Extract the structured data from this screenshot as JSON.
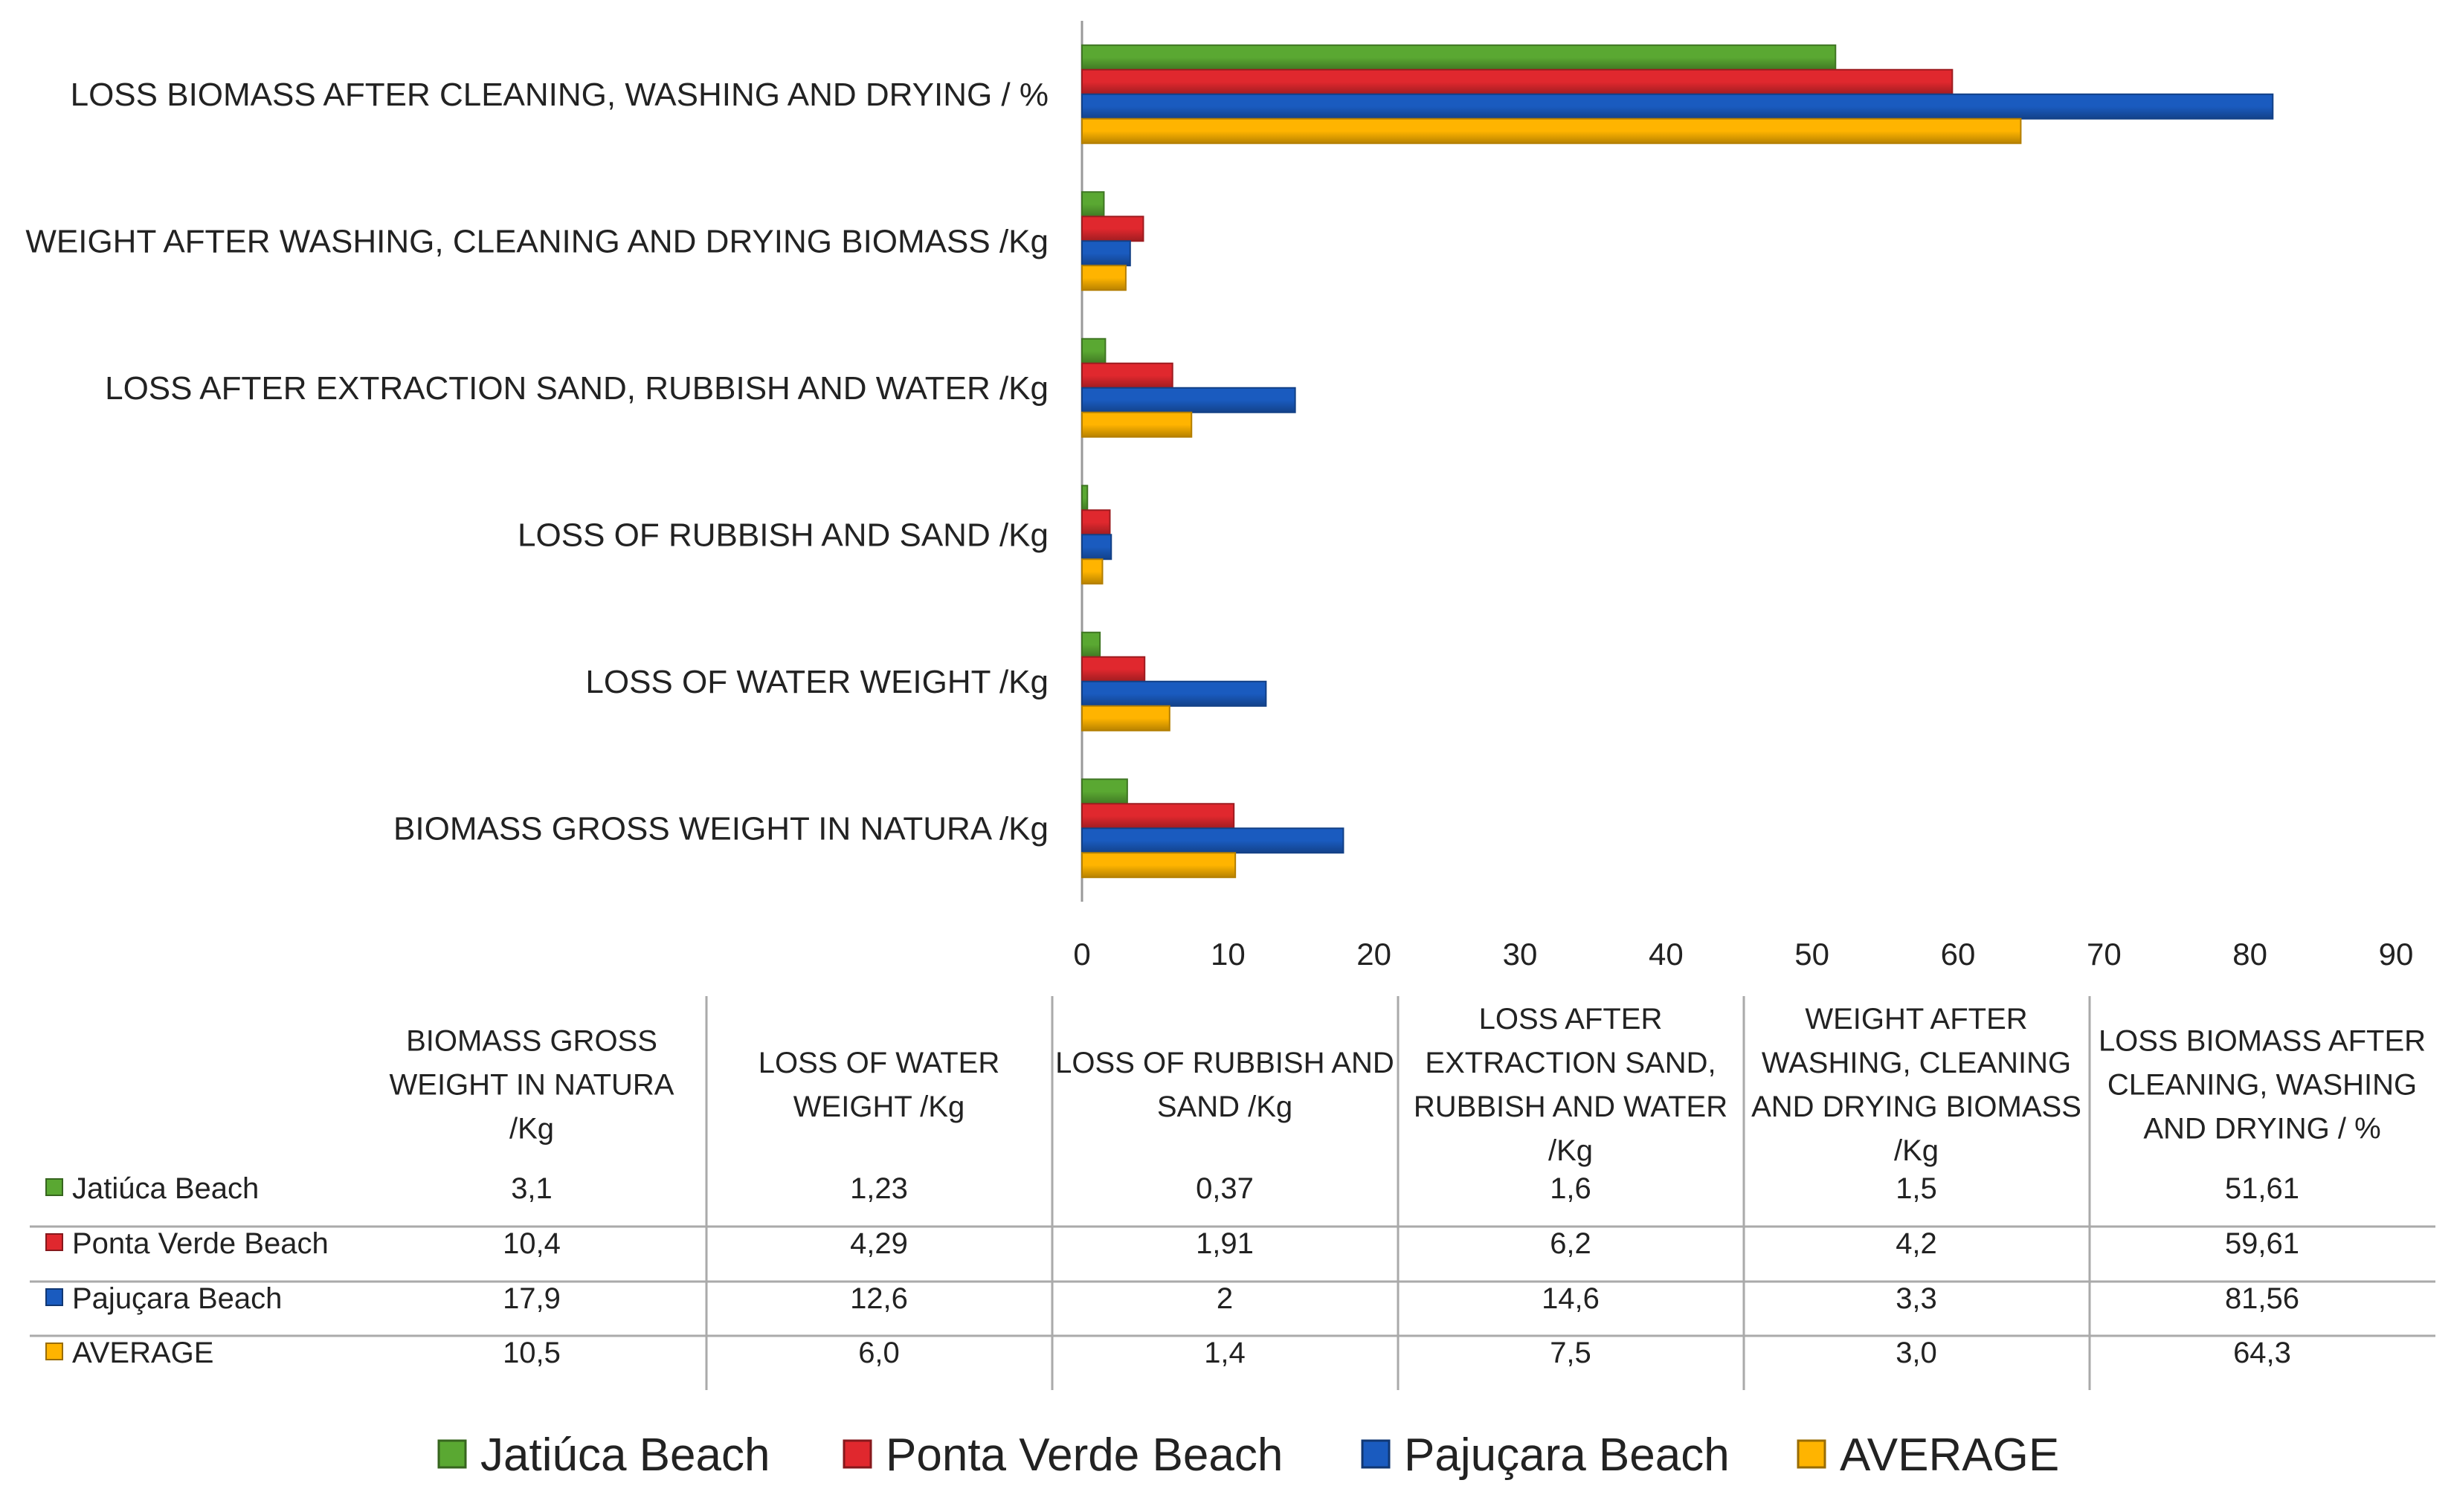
{
  "chart_data": {
    "type": "bar",
    "orientation": "horizontal",
    "categories": [
      "BIOMASS GROSS WEIGHT IN NATURA /Kg",
      "LOSS OF WATER WEIGHT /Kg",
      "LOSS OF RUBBISH AND SAND /Kg",
      "LOSS AFTER EXTRACTION SAND, RUBBISH AND WATER /Kg",
      "WEIGHT AFTER WASHING, CLEANING AND DRYING BIOMASS /Kg",
      "LOSS BIOMASS AFTER CLEANING, WASHING AND DRYING / %"
    ],
    "series": [
      {
        "name": "Jatiúca Beach",
        "color": "#5aa832",
        "values": [
          3.1,
          1.23,
          0.37,
          1.6,
          1.5,
          51.61
        ],
        "labels": [
          "3,1",
          "1,23",
          "0,37",
          "1,6",
          "1,5",
          "51,61"
        ]
      },
      {
        "name": "Ponta Verde Beach",
        "color": "#e0282e",
        "values": [
          10.4,
          4.29,
          1.91,
          6.2,
          4.2,
          59.61
        ],
        "labels": [
          "10,4",
          "4,29",
          "1,91",
          "6,2",
          "4,2",
          "59,61"
        ]
      },
      {
        "name": "Pajuçara Beach",
        "color": "#1a5bbf",
        "values": [
          17.9,
          12.6,
          2,
          14.6,
          3.3,
          81.56
        ],
        "labels": [
          "17,9",
          "12,6",
          "2",
          "14,6",
          "3,3",
          "81,56"
        ]
      },
      {
        "name": "AVERAGE",
        "color": "#ffb400",
        "values": [
          10.5,
          6.0,
          1.4,
          7.5,
          3.0,
          64.3
        ],
        "labels": [
          "10,5",
          "6,0",
          "1,4",
          "7,5",
          "3,0",
          "64,3"
        ]
      }
    ],
    "xlim": [
      0,
      90
    ],
    "x_ticks": [
      0,
      10,
      20,
      30,
      40,
      50,
      60,
      70,
      80,
      90
    ],
    "table_headers": [
      [
        "BIOMASS GROSS",
        "WEIGHT IN NATURA",
        "/Kg"
      ],
      [
        "LOSS OF WATER",
        "WEIGHT /Kg"
      ],
      [
        "LOSS OF RUBBISH AND",
        "SAND /Kg"
      ],
      [
        "LOSS AFTER",
        "EXTRACTION SAND,",
        "RUBBISH AND WATER",
        "/Kg"
      ],
      [
        "WEIGHT AFTER",
        "WASHING, CLEANING",
        "AND DRYING BIOMASS",
        "/Kg"
      ],
      [
        "LOSS BIOMASS AFTER",
        "CLEANING, WASHING",
        "AND DRYING / %"
      ]
    ],
    "grid": false,
    "legend_position": "bottom",
    "title": "",
    "xlabel": "",
    "ylabel": ""
  }
}
